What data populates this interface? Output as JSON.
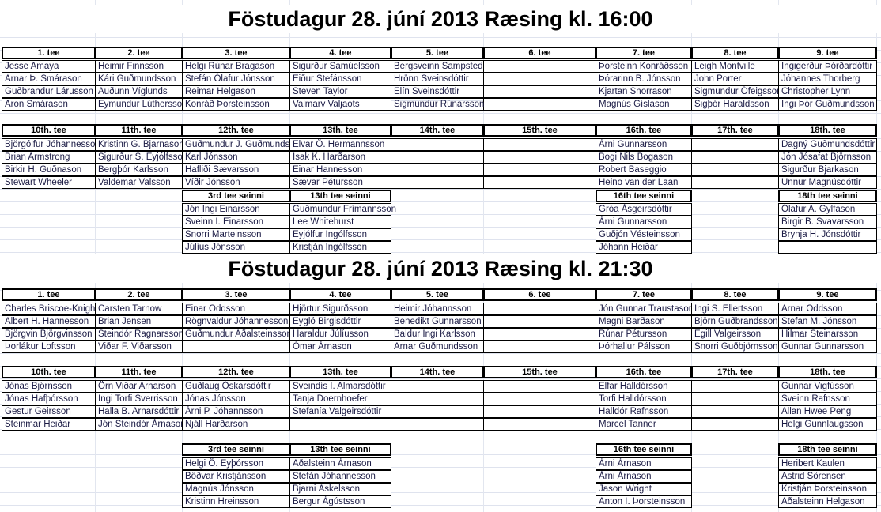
{
  "sessions": [
    {
      "title": "Föstudagur 28. júní 2013 Ræsing kl. 16:00",
      "front": {
        "headers": [
          "1. tee",
          "2. tee",
          "3. tee",
          "4. tee",
          "5. tee",
          "6. tee",
          "7. tee",
          "8. tee",
          "9. tee"
        ],
        "rows": [
          [
            "Jesse Amaya",
            "Heimir Finnsson",
            "Helgi Rúnar Bragason",
            "Sigurður Samúelsson",
            "Bergsveinn Sampsted",
            "",
            "Þorsteinn Konráðsson",
            "Leigh Montville",
            "Ingigerður Þórðardóttir"
          ],
          [
            "Arnar Þ. Smárason",
            "Kári Guðmundsson",
            "Stefán Ólafur Jónsson",
            "Eiður Stefánsson",
            "Hrönn Sveinsdóttir",
            "",
            "Þórarinn B. Jónsson",
            "John Porter",
            "Jóhannes Thorberg"
          ],
          [
            "Guðbrandur Lárusson",
            "Auðunn Víglunds",
            "Reimar Helgason",
            "Steven Taylor",
            "Elín Sveinsdóttir",
            "",
            "Kjartan Snorrason",
            "Sigmundur Ófeigsson",
            "Christopher Lynn"
          ],
          [
            "Aron Smárason",
            "Eymundur Lúthersson",
            "Konráð Þorsteinsson",
            "Valmarv Valjaots",
            "Sigmundur Rúnarsson",
            "",
            "Magnús Gíslason",
            "Sigþór Haraldsson",
            "Ingi Þór Guðmundsson"
          ]
        ]
      },
      "back": {
        "headers": [
          "10th. tee",
          "11th. tee",
          "12th. tee",
          "13th. tee",
          "14th. tee",
          "15th. tee",
          "16th. tee",
          "17th. tee",
          "18th. tee"
        ],
        "rows": [
          [
            "Björgólfur Jóhannesson",
            "Kristinn G. Bjarnason",
            "Guðmundur J. Guðmundsson",
            "Elvar Ö. Hermannsson",
            "",
            "",
            "Árni Gunnarsson",
            "",
            "Dagný Guðmundsdóttir"
          ],
          [
            "Brian Armstrong",
            "Sigurður S. Eyjólfsson",
            "Karl Jónsson",
            "Ísak K. Harðarson",
            "",
            "",
            "Bogi Nils Bogason",
            "",
            "Jón Jósafat Björnsson"
          ],
          [
            "Birkir H. Guðnason",
            "Bergþór Karlsson",
            "Hafliði Sævarsson",
            "Einar Hannesson",
            "",
            "",
            "Robert Baseggio",
            "",
            "Sigurður Bjarkason"
          ],
          [
            "Stewart Wheeler",
            "Valdemar Valsson",
            "Víðir Jónsson",
            "Sævar Pétursson",
            "",
            "",
            "Heino van der Laan",
            "",
            "Unnur Magnúsdóttir"
          ]
        ]
      },
      "seinni": [
        {
          "header": "3rd tee seinni",
          "players": [
            "Jón Ingi Einarsson",
            "Sveinn I. Einarsson",
            "Snorri Marteinsson",
            "Júlíus Jónsson"
          ]
        },
        {
          "header": "13th tee seinni",
          "players": [
            "Guðmundur Frímannsson",
            "Lee Whitehurst",
            "Eyjólfur Ingólfsson",
            "Kristján Ingólfsson"
          ]
        },
        {
          "header": "16th tee seinni",
          "players": [
            "Gróa Ásgeirsdóttir",
            "Árni Gunnarsson",
            "Guðjón Vésteinsson",
            "Jóhann Heiðar"
          ]
        },
        {
          "header": "18th tee seinni",
          "players": [
            "Ólafur A. Gylfason",
            "Birgir B. Svavarsson",
            "Brynja H. Jónsdóttir",
            ""
          ]
        }
      ]
    },
    {
      "title": "Föstudagur 28. júní 2013 Ræsing kl. 21:30",
      "front": {
        "headers": [
          "1. tee",
          "2. tee",
          "3. tee",
          "4. tee",
          "5. tee",
          "6. tee",
          "7. tee",
          "8. tee",
          "9. tee"
        ],
        "rows": [
          [
            "Charles Briscoe-Knight",
            "Carsten Tarnow",
            "Einar Oddsson",
            "Hjörtur Sigurðsson",
            "Heimir Jóhannsson",
            "",
            "Jón Gunnar Traustason",
            "Ingi S. Ellertsson",
            "Arnar Oddsson"
          ],
          [
            "Albert H. Hannesson",
            "Brian Jensen",
            "Rögnvaldur Jóhannesson",
            "Eygló Birgisdóttir",
            "Benedikt Gunnarsson",
            "",
            "Magni Barðason",
            "Björn Guðbrandsson",
            "Stefan M. Jónsson"
          ],
          [
            "Björgvin Björgvinsson",
            "Steindór Ragnarsson",
            "Guðmundur Aðalsteinsson",
            "Haraldur Júlíusson",
            "Baldur Ingi Karlsson",
            "",
            "Rúnar Pétursson",
            "Egill Valgeirsson",
            "Hilmar Steinarsson"
          ],
          [
            "Þorlákur Loftsson",
            "Viðar F. Viðarsson",
            "",
            "Ómar Árnason",
            "Arnar Guðmundsson",
            "",
            "Þórhallur Pálsson",
            "Snorri Guðbjörnsson",
            "Gunnar Gunnarsson"
          ]
        ]
      },
      "back": {
        "headers": [
          "10th. tee",
          "11th. tee",
          "12th. tee",
          "13th. tee",
          "14th. tee",
          "15th. tee",
          "16th. tee",
          "17th. tee",
          "18th. tee"
        ],
        "rows": [
          [
            "Jónas Björnsson",
            "Örn Viðar Arnarson",
            "Guðlaug Óskarsdóttir",
            "Sveindís I. Almarsdóttir",
            "",
            "",
            "Elfar Halldórsson",
            "",
            "Gunnar Vigfússon"
          ],
          [
            "Jónas Hafþórsson",
            "Ingi Torfi Sverrisson",
            "Jónas Jónsson",
            "Tanja Doernhoefer",
            "",
            "",
            "Torfi Halldórsson",
            "",
            "Sveinn Rafnsson"
          ],
          [
            "Gestur Geirsson",
            "Halla B. Arnarsdóttir",
            "Árni P. Jóhannsson",
            "Stefanía Valgeirsdóttir",
            "",
            "",
            "Halldór Rafnsson",
            "",
            "Allan Hwee Peng"
          ],
          [
            "Steinmar Heiðar",
            "Jón Steindór Árnason",
            "Njáll Harðarson",
            "",
            "",
            "",
            "Marcel Tanner",
            "",
            "Helgi Gunnlaugsson"
          ]
        ]
      },
      "seinni": [
        {
          "header": "3rd tee seinni",
          "players": [
            "Helgi Ö. Eyþórsson",
            "Böðvar Kristjánsson",
            "Magnús Jónsson",
            "Kristinn Hreinsson"
          ]
        },
        {
          "header": "13th tee seinni",
          "players": [
            "Aðalsteinn Árnason",
            "Stefán Jóhannesson",
            "Bjarni Áskelsson",
            "Bergur Ágústsson"
          ]
        },
        {
          "header": "16th tee seinni",
          "players": [
            "Árni Árnason",
            "Árni Árnason",
            "Jason Wright",
            "Anton I. Þorsteinsson"
          ]
        },
        {
          "header": "18th tee seinni",
          "players": [
            "Heribert Kaulen",
            "Astrid Sörensen",
            "Kristján Þorsteinsson",
            "Aðalsteinn Helgason"
          ]
        }
      ]
    }
  ]
}
